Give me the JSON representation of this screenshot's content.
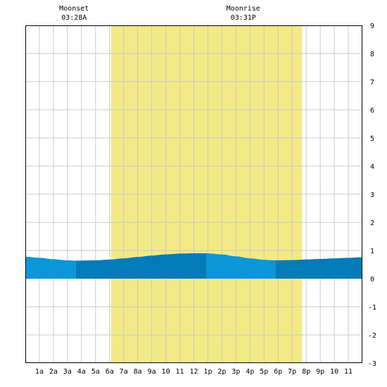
{
  "chart_data": {
    "type": "area",
    "title": "",
    "xlabel": "",
    "ylabel": "",
    "ylim": [
      -3,
      9
    ],
    "xlim": [
      0,
      24
    ],
    "grid": true,
    "x_tick_labels": [
      "1a",
      "2a",
      "3a",
      "4a",
      "5a",
      "6a",
      "7a",
      "8a",
      "9a",
      "10",
      "11",
      "12",
      "1p",
      "2p",
      "3p",
      "4p",
      "5p",
      "6p",
      "7p",
      "8p",
      "9p",
      "10",
      "11"
    ],
    "y_tick_labels": [
      "-3",
      "-2",
      "-1",
      "0",
      "1",
      "2",
      "3",
      "4",
      "5",
      "6",
      "7",
      "8",
      "9"
    ],
    "daylight": {
      "start": 6.1,
      "end": 19.7
    },
    "events": [
      {
        "label": "Moonset",
        "time": "03:28A",
        "x": 3.47
      },
      {
        "label": "Moonrise",
        "time": "03:31P",
        "x": 15.52
      }
    ],
    "tide_x": [
      0,
      1,
      2,
      3,
      3.6,
      5,
      6,
      7,
      8,
      9,
      10,
      11,
      12,
      12.9,
      14,
      15,
      16,
      17,
      17.8,
      19,
      20,
      21,
      22,
      23,
      24
    ],
    "tide_y": [
      0.78,
      0.74,
      0.69,
      0.65,
      0.64,
      0.65,
      0.68,
      0.72,
      0.77,
      0.82,
      0.86,
      0.89,
      0.9,
      0.9,
      0.86,
      0.79,
      0.72,
      0.67,
      0.65,
      0.66,
      0.68,
      0.7,
      0.72,
      0.74,
      0.76
    ],
    "segments": [
      {
        "from": 0,
        "to": 3.6
      },
      {
        "from": 3.6,
        "to": 12.9
      },
      {
        "from": 12.9,
        "to": 17.8
      },
      {
        "from": 17.8,
        "to": 24
      }
    ],
    "colors": {
      "daylight": "#f3ea86",
      "tide_light": "#0a96d8",
      "tide_dark": "#027bb6",
      "grid": "#c8c8c8",
      "axis": "#000000",
      "background": "#ffffff"
    }
  }
}
